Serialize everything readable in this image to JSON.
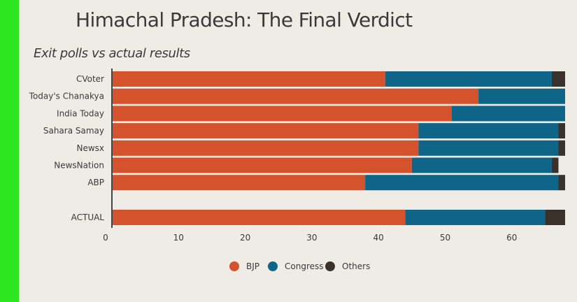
{
  "title": "Himachal Pradesh: The Final Verdict",
  "subtitle": "Exit polls vs actual results",
  "colors": {
    "background": "#efece6",
    "side_bar": "#2ee61e",
    "BJP": "#d4532c",
    "Congress": "#0f6588",
    "Others": "#3a322a",
    "axis": "#444444"
  },
  "chart_data": {
    "type": "bar",
    "orientation": "horizontal",
    "stacked": true,
    "categories": [
      "CVoter",
      "Today's Chanakya",
      "India Today",
      "Sahara Samay",
      "Newsx",
      "NewsNation",
      "ABP",
      "ACTUAL"
    ],
    "series": [
      {
        "name": "BJP",
        "values": [
          41,
          55,
          51,
          46,
          46,
          45,
          38,
          44
        ]
      },
      {
        "name": "Congress",
        "values": [
          25,
          13,
          17,
          21,
          21,
          21,
          29,
          21
        ]
      },
      {
        "name": "Others",
        "values": [
          2,
          0,
          0,
          1,
          1,
          1,
          1,
          3
        ]
      }
    ],
    "xticks": [
      0,
      10,
      20,
      30,
      40,
      50,
      60
    ],
    "xlim": [
      0,
      68
    ],
    "xlabel": "",
    "ylabel": "",
    "legend": [
      "BJP",
      "Congress",
      "Others"
    ],
    "legend_position": "bottom",
    "grid": false
  }
}
